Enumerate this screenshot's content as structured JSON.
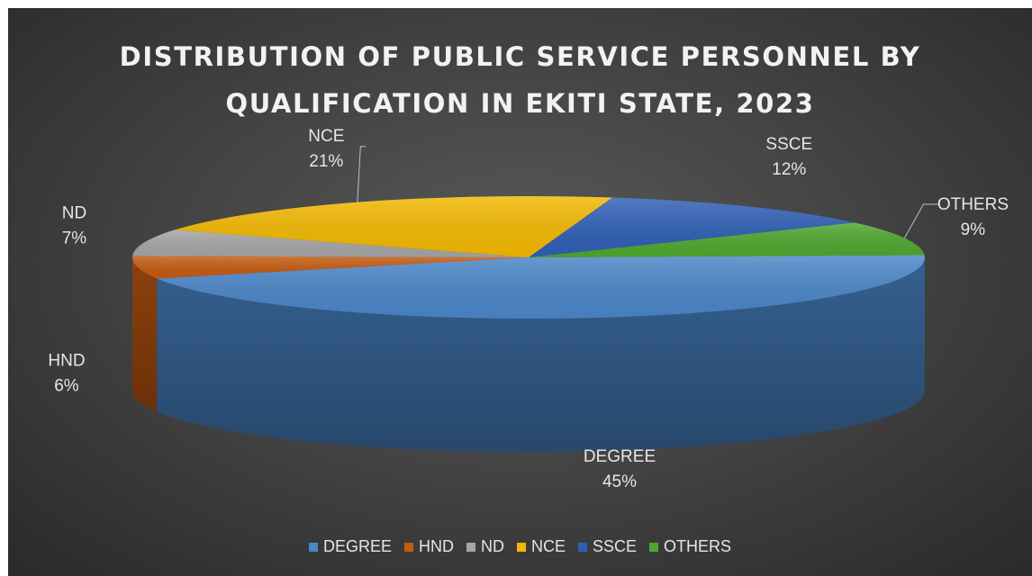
{
  "chart_data": {
    "type": "pie",
    "title": "DISTRIBUTION OF PUBLIC SERVICE PERSONNEL BY QUALIFICATION IN EKITI STATE, 2023",
    "title_lines": [
      "DISTRIBUTION OF PUBLIC SERVICE PERSONNEL BY",
      "QUALIFICATION IN EKITI STATE, 2023"
    ],
    "three_d": true,
    "legend_position": "bottom",
    "categories": [
      "DEGREE",
      "HND",
      "ND",
      "NCE",
      "SSCE",
      "OTHERS"
    ],
    "values": [
      45,
      6,
      7,
      21,
      12,
      9
    ],
    "data_labels": [
      "45%",
      "6%",
      "7%",
      "21%",
      "12%",
      "9%"
    ],
    "colors": [
      "#4A86C8",
      "#C55A11",
      "#A5A5A5",
      "#F2B800",
      "#2F5FB5",
      "#4EA72E"
    ]
  }
}
